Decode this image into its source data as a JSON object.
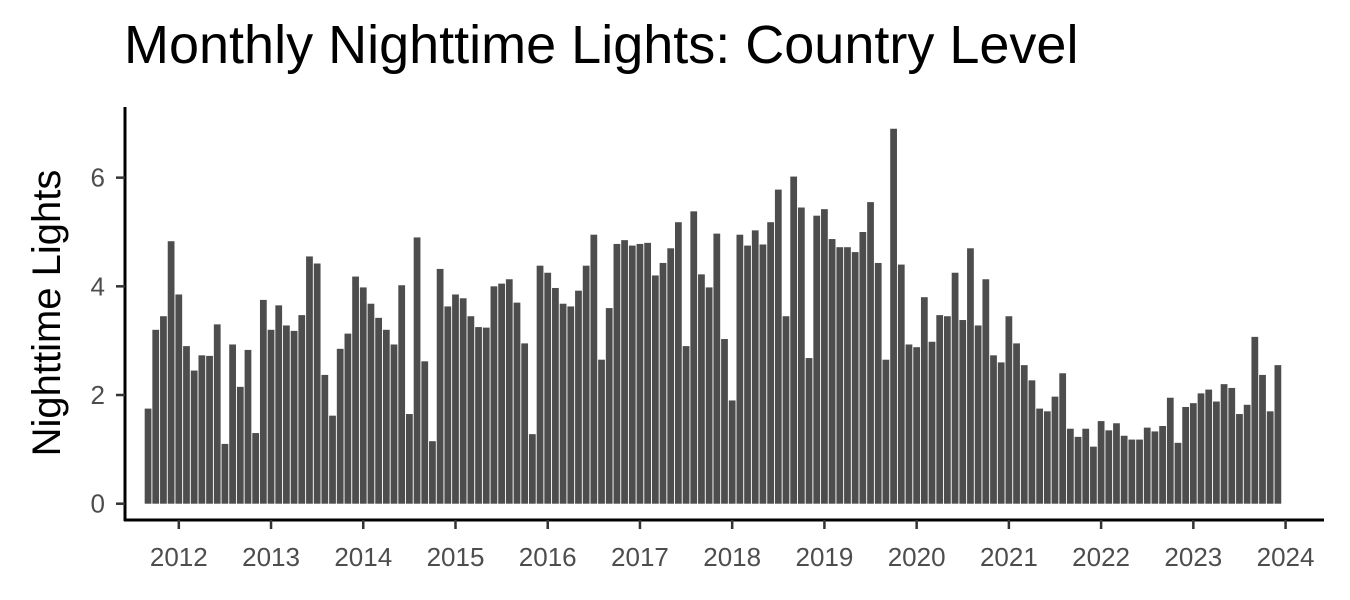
{
  "chart_data": {
    "type": "bar",
    "title": "Monthly Nighttime Lights: Country Level",
    "xlabel": "",
    "ylabel": "Nighttime Lights",
    "x_start": "2011-09",
    "x_interval": "month",
    "xlim": [
      "2011-06",
      "2024-06"
    ],
    "ylim": [
      -0.3,
      7.3
    ],
    "x_ticks": [
      "2012",
      "2013",
      "2014",
      "2015",
      "2016",
      "2017",
      "2018",
      "2019",
      "2020",
      "2021",
      "2022",
      "2023",
      "2024"
    ],
    "y_ticks": [
      "0",
      "2",
      "4",
      "6"
    ],
    "grid": false,
    "bar_color": "#4d4d4d",
    "values": [
      1.75,
      3.2,
      3.45,
      4.83,
      3.85,
      2.9,
      2.45,
      2.73,
      2.72,
      3.3,
      1.1,
      2.93,
      2.15,
      2.83,
      1.3,
      3.75,
      3.2,
      3.65,
      3.28,
      3.18,
      3.47,
      4.55,
      4.42,
      2.37,
      1.62,
      2.85,
      3.13,
      4.18,
      3.98,
      3.68,
      3.42,
      3.2,
      2.93,
      4.02,
      1.65,
      4.9,
      2.62,
      1.15,
      4.32,
      3.63,
      3.85,
      3.78,
      3.45,
      3.25,
      3.24,
      4.0,
      4.05,
      4.13,
      3.7,
      2.95,
      1.28,
      4.38,
      4.25,
      3.97,
      3.68,
      3.63,
      3.92,
      4.38,
      4.95,
      2.65,
      3.6,
      4.78,
      4.85,
      4.75,
      4.78,
      4.8,
      4.2,
      4.43,
      4.7,
      5.18,
      2.9,
      5.38,
      4.22,
      3.98,
      4.97,
      3.03,
      1.9,
      4.95,
      4.75,
      5.03,
      4.77,
      5.18,
      5.78,
      3.45,
      6.02,
      5.45,
      2.68,
      5.3,
      5.42,
      4.87,
      4.72,
      4.72,
      4.63,
      5.0,
      5.55,
      4.43,
      2.65,
      6.9,
      4.4,
      2.93,
      2.88,
      3.8,
      2.98,
      3.47,
      3.45,
      4.25,
      3.38,
      4.7,
      3.28,
      4.13,
      2.73,
      2.6,
      3.45,
      2.95,
      2.55,
      2.27,
      1.75,
      1.7,
      1.97,
      2.4,
      1.38,
      1.23,
      1.38,
      1.05,
      1.52,
      1.35,
      1.48,
      1.25,
      1.18,
      1.18,
      1.4,
      1.33,
      1.43,
      1.95,
      1.12,
      1.78,
      1.85,
      2.03,
      2.1,
      1.88,
      2.2,
      2.13,
      1.65,
      1.82,
      3.07,
      2.37,
      1.7,
      2.55
    ]
  }
}
